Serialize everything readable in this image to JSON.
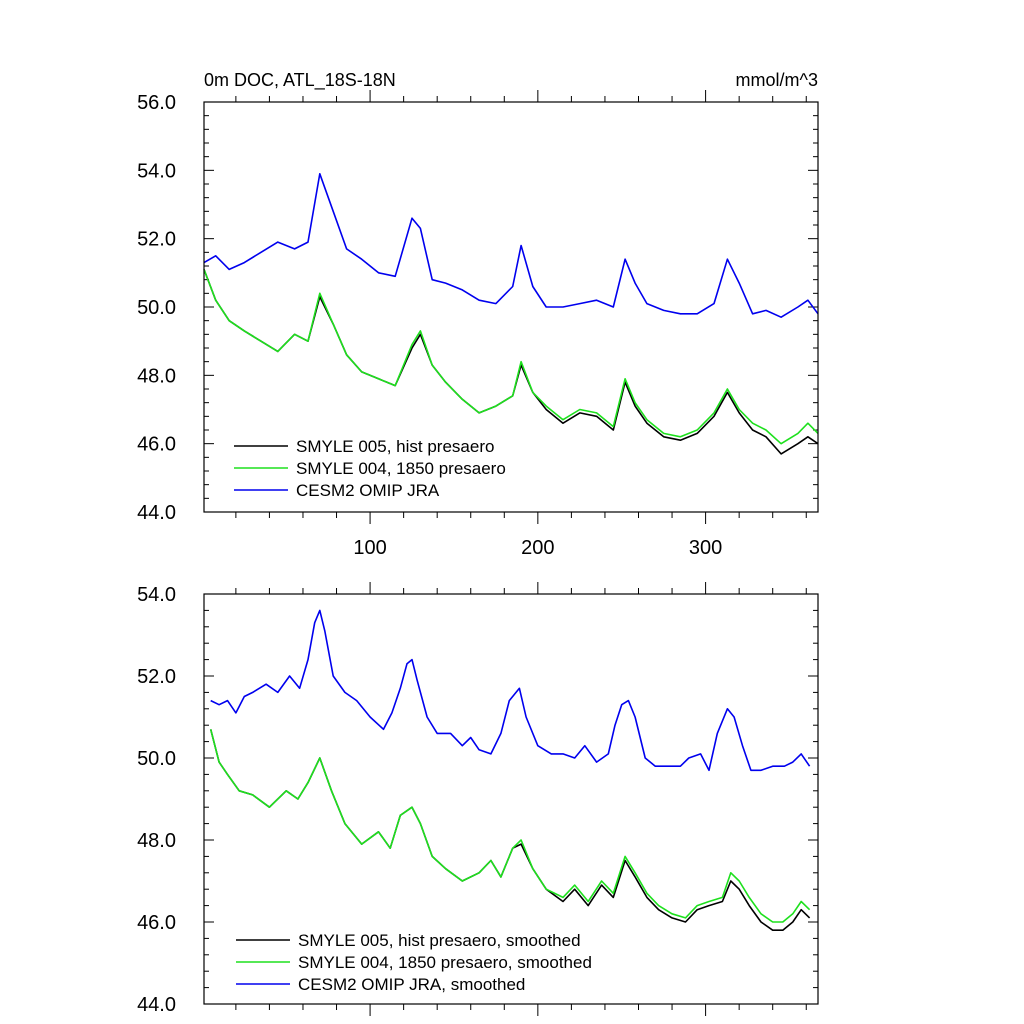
{
  "colors": {
    "black": "#000000",
    "green": "#1ee01e",
    "blue": "#0000ee",
    "frame": "#000000"
  },
  "chart_data": [
    {
      "type": "line",
      "title_left": "0m DOC, ATL_18S-18N",
      "title_right": "mmol/m^3",
      "xlabel": "",
      "ylabel": "",
      "xlim": [
        1,
        367
      ],
      "ylim": [
        44,
        56
      ],
      "xticks": [
        100,
        200,
        300
      ],
      "xtick_labels": [
        "100",
        "200",
        "300"
      ],
      "yticks": [
        44,
        46,
        48,
        50,
        52,
        54,
        56
      ],
      "ytick_labels": [
        "44.0",
        "46.0",
        "48.0",
        "50.0",
        "52.0",
        "54.0",
        "56.0"
      ],
      "legend_position": "bottom-left",
      "series": [
        {
          "name": "SMYLE 005, hist presaero",
          "color": "black",
          "x": [
            1,
            8,
            16,
            25,
            35,
            45,
            55,
            63,
            70,
            78,
            86,
            95,
            105,
            115,
            125,
            130,
            137,
            145,
            155,
            165,
            175,
            185,
            190,
            197,
            205,
            215,
            225,
            235,
            245,
            252,
            258,
            265,
            275,
            285,
            295,
            305,
            313,
            320,
            328,
            336,
            345,
            355,
            361,
            367
          ],
          "y": [
            51.1,
            50.2,
            49.6,
            49.3,
            49.0,
            48.7,
            49.2,
            49.0,
            50.3,
            49.5,
            48.6,
            48.1,
            47.9,
            47.7,
            48.8,
            49.2,
            48.3,
            47.8,
            47.3,
            46.9,
            47.1,
            47.4,
            48.3,
            47.5,
            47.0,
            46.6,
            46.9,
            46.8,
            46.4,
            47.8,
            47.1,
            46.6,
            46.2,
            46.1,
            46.3,
            46.8,
            47.5,
            46.9,
            46.4,
            46.2,
            45.7,
            46.0,
            46.2,
            46.0
          ]
        },
        {
          "name": "SMYLE 004, 1850 presaero",
          "color": "green",
          "x": [
            1,
            8,
            16,
            25,
            35,
            45,
            55,
            63,
            70,
            78,
            86,
            95,
            105,
            115,
            125,
            130,
            137,
            145,
            155,
            165,
            175,
            185,
            190,
            197,
            205,
            215,
            225,
            235,
            245,
            252,
            258,
            265,
            275,
            285,
            295,
            305,
            313,
            320,
            328,
            336,
            345,
            355,
            361,
            367
          ],
          "y": [
            51.1,
            50.2,
            49.6,
            49.3,
            49.0,
            48.7,
            49.2,
            49.0,
            50.4,
            49.5,
            48.6,
            48.1,
            47.9,
            47.7,
            48.9,
            49.3,
            48.3,
            47.8,
            47.3,
            46.9,
            47.1,
            47.4,
            48.4,
            47.5,
            47.1,
            46.7,
            47.0,
            46.9,
            46.5,
            47.9,
            47.2,
            46.7,
            46.3,
            46.2,
            46.4,
            46.9,
            47.6,
            47.0,
            46.6,
            46.4,
            46.0,
            46.3,
            46.6,
            46.3
          ]
        },
        {
          "name": "CESM2 OMIP JRA",
          "color": "blue",
          "x": [
            1,
            8,
            16,
            25,
            35,
            45,
            55,
            63,
            70,
            78,
            86,
            95,
            105,
            115,
            125,
            130,
            137,
            145,
            155,
            165,
            175,
            185,
            190,
            197,
            205,
            215,
            225,
            235,
            245,
            252,
            258,
            265,
            275,
            285,
            295,
            305,
            313,
            320,
            328,
            336,
            345,
            355,
            361,
            367
          ],
          "y": [
            51.3,
            51.5,
            51.1,
            51.3,
            51.6,
            51.9,
            51.7,
            51.9,
            53.9,
            52.8,
            51.7,
            51.4,
            51.0,
            50.9,
            52.6,
            52.3,
            50.8,
            50.7,
            50.5,
            50.2,
            50.1,
            50.6,
            51.8,
            50.6,
            50.0,
            50.0,
            50.1,
            50.2,
            50.0,
            51.4,
            50.7,
            50.1,
            49.9,
            49.8,
            49.8,
            50.1,
            51.4,
            50.7,
            49.8,
            49.9,
            49.7,
            50.0,
            50.2,
            49.8
          ]
        }
      ]
    },
    {
      "type": "line",
      "xlabel": "",
      "ylabel": "",
      "xlim": [
        1,
        367
      ],
      "ylim": [
        44,
        54
      ],
      "xticks": [
        100,
        200,
        300
      ],
      "yticks": [
        44,
        46,
        48,
        50,
        52,
        54
      ],
      "ytick_labels": [
        "44.0",
        "46.0",
        "48.0",
        "50.0",
        "52.0",
        "54.0"
      ],
      "legend_position": "bottom-left",
      "series": [
        {
          "name": "SMYLE 005, hist presaero, smoothed",
          "color": "black",
          "x": [
            5,
            10,
            15,
            22,
            30,
            40,
            50,
            57,
            63,
            70,
            77,
            85,
            95,
            105,
            112,
            118,
            125,
            130,
            137,
            145,
            155,
            165,
            172,
            178,
            185,
            190,
            197,
            205,
            215,
            222,
            230,
            238,
            245,
            252,
            258,
            265,
            272,
            280,
            288,
            295,
            302,
            310,
            315,
            320,
            326,
            333,
            340,
            346,
            352,
            357,
            362
          ],
          "y": [
            50.7,
            49.9,
            49.6,
            49.2,
            49.1,
            48.8,
            49.2,
            49.0,
            49.4,
            50.0,
            49.2,
            48.4,
            47.9,
            48.2,
            47.8,
            48.6,
            48.8,
            48.4,
            47.6,
            47.3,
            47.0,
            47.2,
            47.5,
            47.1,
            47.8,
            47.9,
            47.3,
            46.8,
            46.5,
            46.8,
            46.4,
            46.9,
            46.6,
            47.5,
            47.1,
            46.6,
            46.3,
            46.1,
            46.0,
            46.3,
            46.4,
            46.5,
            47.0,
            46.8,
            46.4,
            46.0,
            45.8,
            45.8,
            46.0,
            46.3,
            46.1
          ]
        },
        {
          "name": "SMYLE 004, 1850 presaero, smoothed",
          "color": "green",
          "x": [
            5,
            10,
            15,
            22,
            30,
            40,
            50,
            57,
            63,
            70,
            77,
            85,
            95,
            105,
            112,
            118,
            125,
            130,
            137,
            145,
            155,
            165,
            172,
            178,
            185,
            190,
            197,
            205,
            215,
            222,
            230,
            238,
            245,
            252,
            258,
            265,
            272,
            280,
            288,
            295,
            302,
            310,
            315,
            320,
            326,
            333,
            340,
            346,
            352,
            357,
            362
          ],
          "y": [
            50.7,
            49.9,
            49.6,
            49.2,
            49.1,
            48.8,
            49.2,
            49.0,
            49.4,
            50.0,
            49.2,
            48.4,
            47.9,
            48.2,
            47.8,
            48.6,
            48.8,
            48.4,
            47.6,
            47.3,
            47.0,
            47.2,
            47.5,
            47.1,
            47.8,
            48.0,
            47.3,
            46.8,
            46.6,
            46.9,
            46.5,
            47.0,
            46.7,
            47.6,
            47.2,
            46.7,
            46.4,
            46.2,
            46.1,
            46.4,
            46.5,
            46.6,
            47.2,
            47.0,
            46.6,
            46.2,
            46.0,
            46.0,
            46.2,
            46.5,
            46.3
          ]
        },
        {
          "name": "CESM2 OMIP JRA, smoothed",
          "color": "blue",
          "x": [
            5,
            10,
            15,
            20,
            25,
            30,
            38,
            45,
            52,
            58,
            63,
            67,
            70,
            73,
            78,
            85,
            92,
            100,
            108,
            113,
            118,
            122,
            125,
            128,
            134,
            140,
            148,
            155,
            160,
            165,
            172,
            178,
            183,
            189,
            193,
            200,
            208,
            215,
            222,
            228,
            235,
            242,
            246,
            250,
            254,
            258,
            264,
            270,
            278,
            285,
            290,
            297,
            302,
            307,
            313,
            317,
            322,
            327,
            333,
            340,
            347,
            352,
            357,
            362
          ],
          "y": [
            51.4,
            51.3,
            51.4,
            51.1,
            51.5,
            51.6,
            51.8,
            51.6,
            52.0,
            51.7,
            52.4,
            53.3,
            53.6,
            53.1,
            52.0,
            51.6,
            51.4,
            51.0,
            50.7,
            51.1,
            51.7,
            52.3,
            52.4,
            51.9,
            51.0,
            50.6,
            50.6,
            50.3,
            50.5,
            50.2,
            50.1,
            50.6,
            51.4,
            51.7,
            51.0,
            50.3,
            50.1,
            50.1,
            50.0,
            50.3,
            49.9,
            50.1,
            50.8,
            51.3,
            51.4,
            51.0,
            50.0,
            49.8,
            49.8,
            49.8,
            50.0,
            50.1,
            49.7,
            50.6,
            51.2,
            51.0,
            50.3,
            49.7,
            49.7,
            49.8,
            49.8,
            49.9,
            50.1,
            49.8
          ]
        }
      ]
    }
  ]
}
